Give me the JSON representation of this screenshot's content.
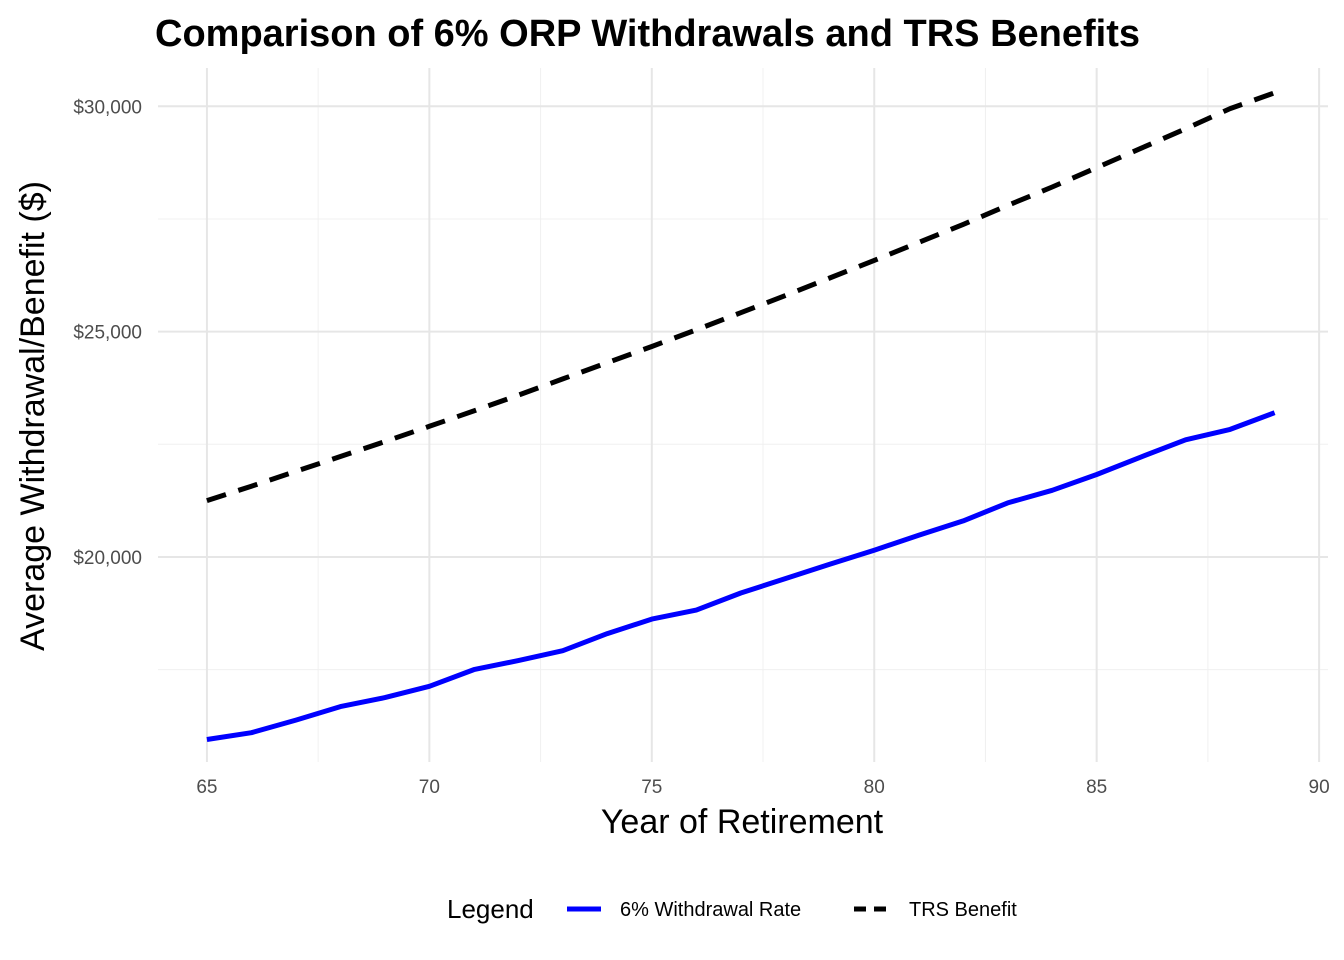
{
  "chart_data": {
    "type": "line",
    "title": "Comparison of 6% ORP Withdrawals and TRS Benefits",
    "xlabel": "Year of Retirement",
    "ylabel": "Average Withdrawal/Benefit ($)",
    "xlim": [
      63.9,
      90.2
    ],
    "ylim": [
      15450,
      30850
    ],
    "x_ticks": [
      65,
      70,
      75,
      80,
      85,
      90
    ],
    "y_ticks": [
      20000,
      25000,
      30000
    ],
    "y_tick_labels": [
      "$20,000",
      "$25,000",
      "$30,000"
    ],
    "grid": true,
    "legend": {
      "title": "Legend",
      "position": "bottom",
      "entries": [
        "6% Withdrawal Rate",
        "TRS Benefit"
      ]
    },
    "x": [
      65,
      66,
      67,
      68,
      69,
      70,
      71,
      72,
      73,
      74,
      75,
      76,
      77,
      78,
      79,
      80,
      81,
      82,
      83,
      84,
      85,
      86,
      87,
      88,
      89
    ],
    "series": [
      {
        "name": "6% Withdrawal Rate",
        "color": "#0000ff",
        "style": "solid",
        "values": [
          15950,
          16100,
          16380,
          16680,
          16880,
          17130,
          17500,
          17700,
          17920,
          18300,
          18620,
          18820,
          19200,
          19520,
          19840,
          20150,
          20480,
          20800,
          21200,
          21480,
          21830,
          22220,
          22600,
          22830,
          23200
        ]
      },
      {
        "name": "TRS Benefit",
        "color": "#000000",
        "style": "dashed",
        "values": [
          21250,
          21570,
          21900,
          22230,
          22560,
          22900,
          23240,
          23590,
          23950,
          24310,
          24670,
          25040,
          25420,
          25800,
          26190,
          26580,
          26980,
          27380,
          27800,
          28210,
          28640,
          29070,
          29500,
          29950,
          30300
        ]
      }
    ]
  }
}
